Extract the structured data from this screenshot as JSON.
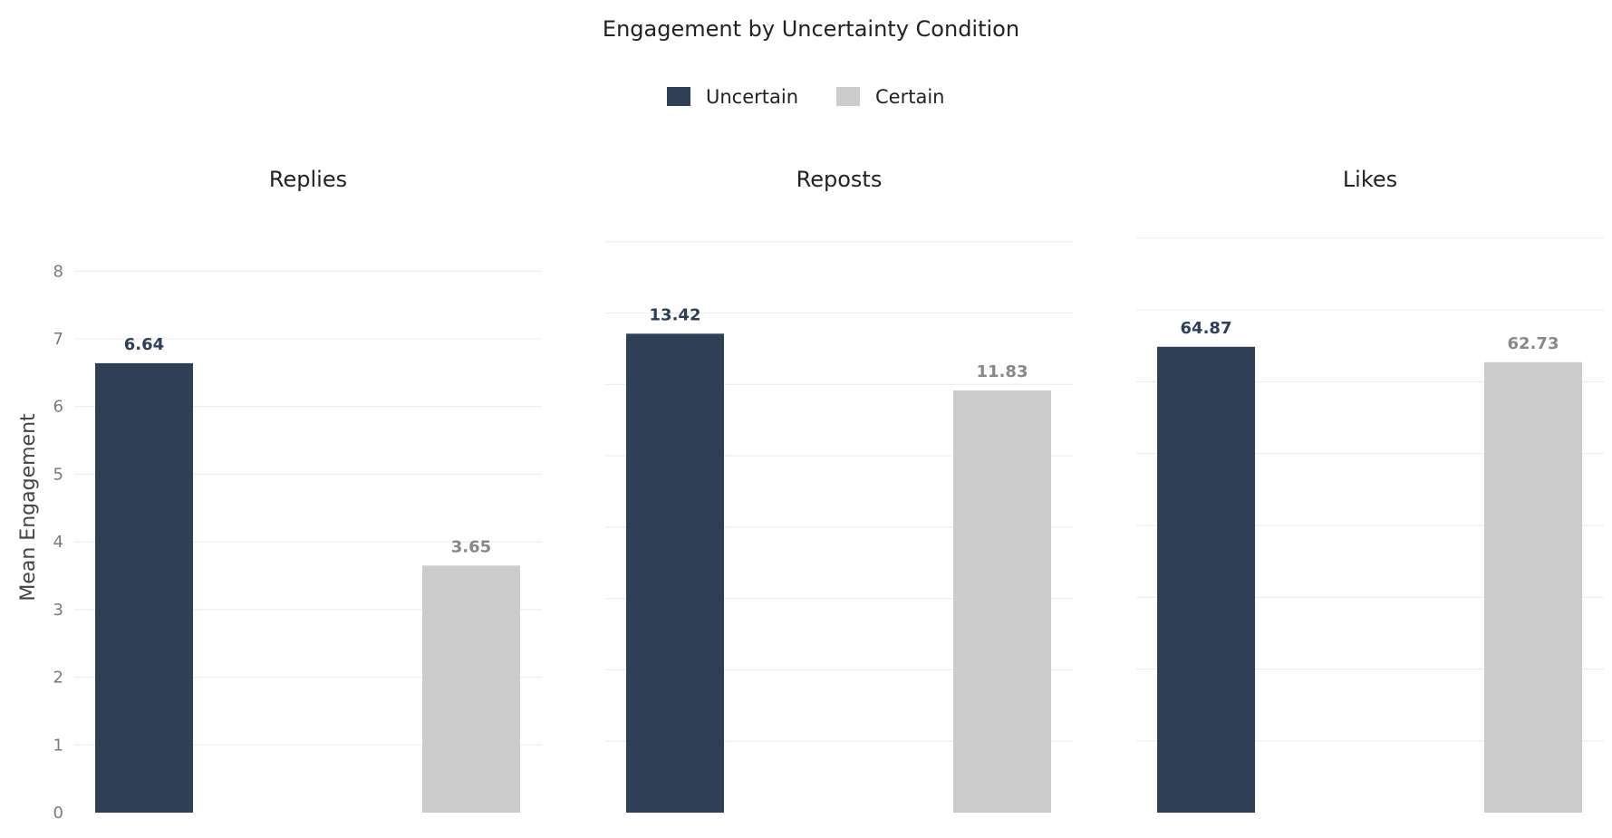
{
  "chart_data": {
    "type": "bar",
    "title": "Engagement by Uncertainty Condition",
    "ylabel": "Mean Engagement",
    "xlabel": "",
    "legend": {
      "placement": "top-center",
      "entries": [
        {
          "name": "Uncertain",
          "color": "#2e3f56"
        },
        {
          "name": "Certain",
          "color": "#cccccc"
        }
      ]
    },
    "value_label_colors": {
      "Uncertain": "#2e3f56",
      "Certain": "#888888"
    },
    "grid": true,
    "panels": [
      {
        "title": "Replies",
        "ylim": [
          0,
          8.7
        ],
        "yticks": [
          "0",
          "1",
          "2",
          "3",
          "4",
          "5",
          "6",
          "7",
          "8"
        ],
        "show_ticks": true,
        "series": [
          {
            "name": "Uncertain",
            "value": 6.64,
            "label": "6.64"
          },
          {
            "name": "Certain",
            "value": 3.65,
            "label": "3.65"
          }
        ]
      },
      {
        "title": "Reposts",
        "ylim": [
          0,
          16.5
        ],
        "grid_values": [
          2,
          4,
          6,
          8,
          10,
          12,
          14,
          16
        ],
        "show_ticks": false,
        "series": [
          {
            "name": "Uncertain",
            "value": 13.42,
            "label": "13.42"
          },
          {
            "name": "Certain",
            "value": 11.83,
            "label": "11.83"
          }
        ]
      },
      {
        "title": "Likes",
        "ylim": [
          0,
          82
        ],
        "grid_values": [
          10,
          20,
          30,
          40,
          50,
          60,
          70,
          80
        ],
        "show_ticks": false,
        "series": [
          {
            "name": "Uncertain",
            "value": 64.87,
            "label": "64.87"
          },
          {
            "name": "Certain",
            "value": 62.73,
            "label": "62.73"
          }
        ]
      }
    ]
  }
}
